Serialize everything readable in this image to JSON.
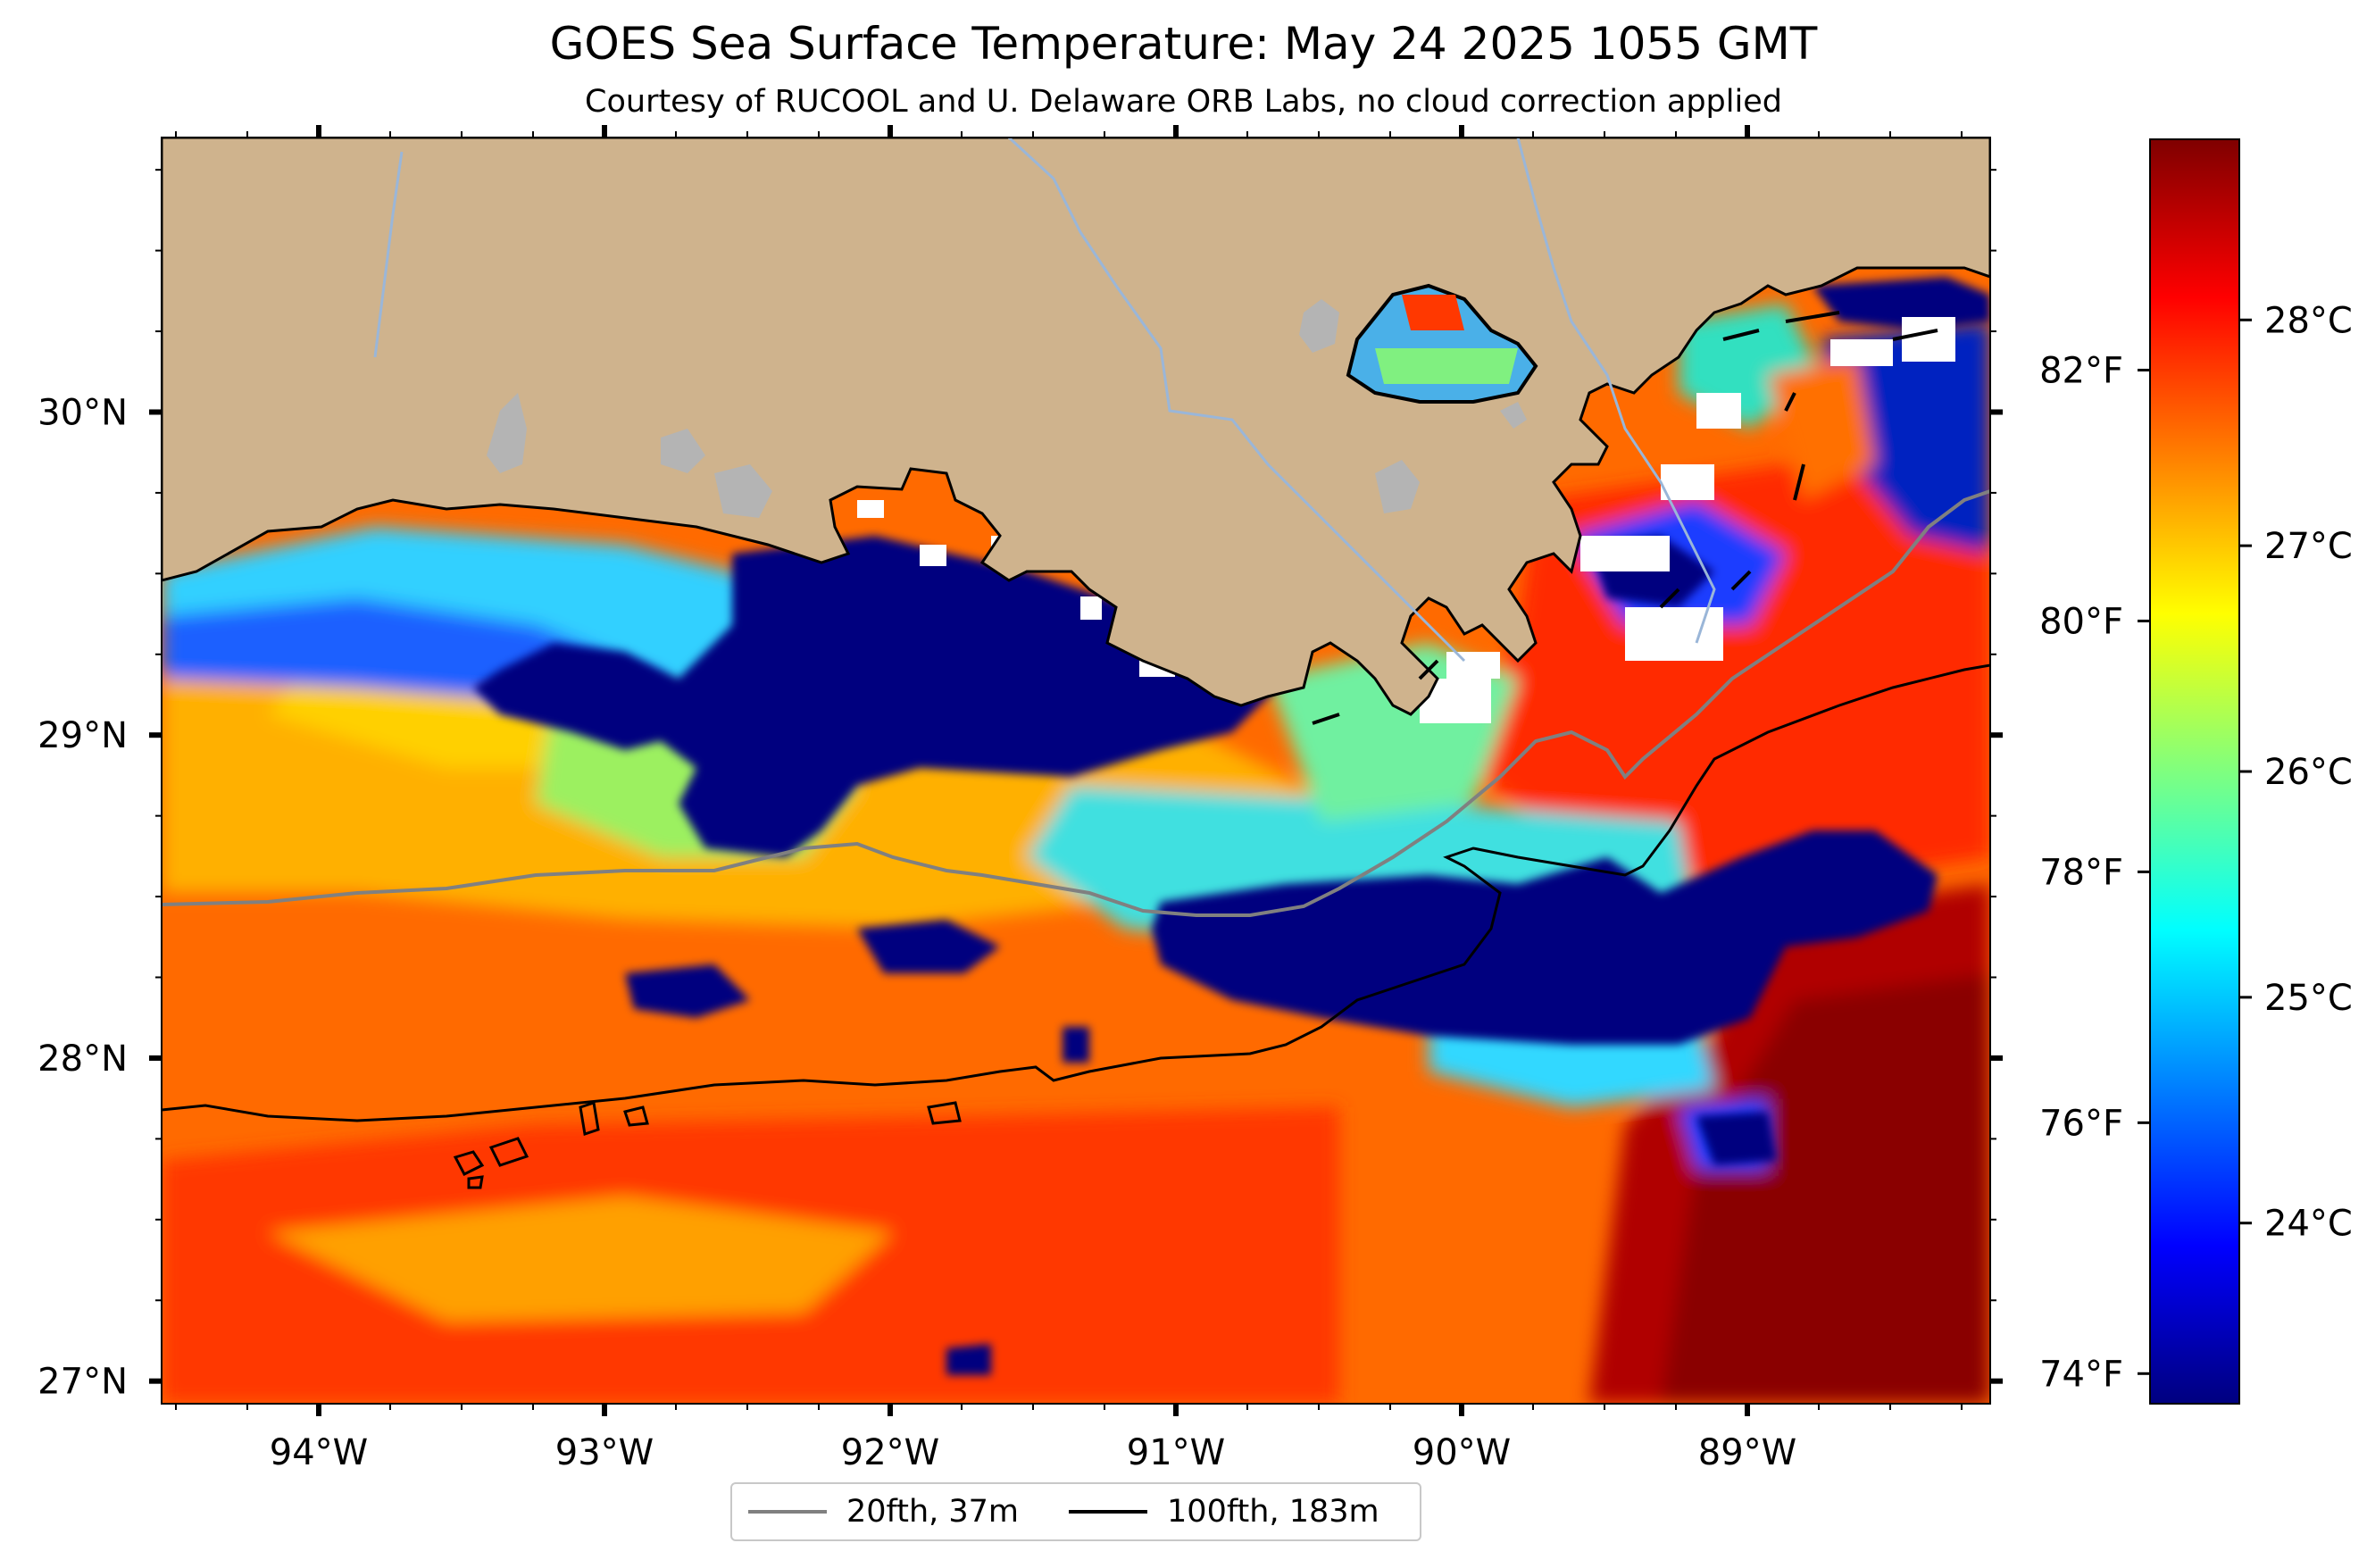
{
  "title": "GOES Sea Surface Temperature: May 24 2025 1055 GMT",
  "subtitle": "Courtesy of RUCOOL and U. Delaware ORB Labs, no cloud correction applied",
  "map": {
    "lon_range": [
      -94.55,
      -88.15
    ],
    "lat_range": [
      26.93,
      30.85
    ],
    "lon_ticks": [
      {
        "value": -94,
        "label": "94°W"
      },
      {
        "value": -93,
        "label": "93°W"
      },
      {
        "value": -92,
        "label": "92°W"
      },
      {
        "value": -91,
        "label": "91°W"
      },
      {
        "value": -90,
        "label": "90°W"
      },
      {
        "value": -89,
        "label": "89°W"
      }
    ],
    "lat_ticks": [
      {
        "value": 30,
        "label": "30°N"
      },
      {
        "value": 29,
        "label": "29°N"
      },
      {
        "value": 28,
        "label": "28°N"
      },
      {
        "value": 27,
        "label": "27°N"
      }
    ],
    "colors": {
      "land": "#cfb38d",
      "lake": "#b4b4b4",
      "river": "#9ab6d8",
      "coast": "#000000",
      "cloud_mask": "#ffffff",
      "isobath_20fth": "#808080",
      "isobath_100fth": "#000000"
    }
  },
  "colorbar": {
    "celsius_range": [
      23.2,
      28.8
    ],
    "celsius_ticks": [
      {
        "value": 24,
        "label": "24°C"
      },
      {
        "value": 25,
        "label": "25°C"
      },
      {
        "value": 26,
        "label": "26°C"
      },
      {
        "value": 27,
        "label": "27°C"
      },
      {
        "value": 28,
        "label": "28°C"
      }
    ],
    "fahrenheit_ticks": [
      {
        "value": 74,
        "label": "74°F"
      },
      {
        "value": 76,
        "label": "76°F"
      },
      {
        "value": 78,
        "label": "78°F"
      },
      {
        "value": 80,
        "label": "80°F"
      },
      {
        "value": 82,
        "label": "82°F"
      }
    ],
    "colormap": "jet",
    "colormap_stops": [
      "#00007f",
      "#0000ff",
      "#007fff",
      "#00ffff",
      "#7fff7f",
      "#ffff00",
      "#ff7f00",
      "#ff0000",
      "#7f0000"
    ]
  },
  "legend": {
    "items": [
      {
        "label": "20fth, 37m",
        "color": "#808080"
      },
      {
        "label": "100fth, 183m",
        "color": "#000000"
      }
    ]
  }
}
